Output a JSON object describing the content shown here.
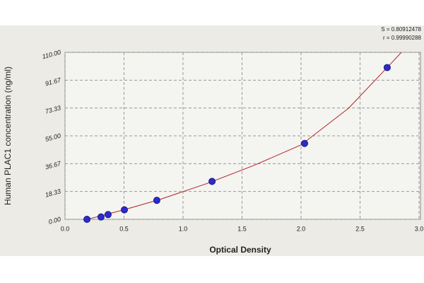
{
  "chart_data": {
    "type": "scatter",
    "x_label": "Optical Density",
    "y_label": "Human PLAC1 concentration (ng/ml)",
    "annotations": [
      "S = 0.80912478",
      "r = 0.99990288"
    ],
    "xlim": [
      0,
      3.0
    ],
    "xticks": [
      {
        "value": 0,
        "label": "0.0"
      },
      0.5,
      {
        "value": 1,
        "label": "1.0"
      },
      1.5,
      {
        "value": 2,
        "label": "2.0"
      },
      2.5,
      {
        "value": 3,
        "label": "3.0"
      }
    ],
    "ylim": [
      0,
      110
    ],
    "yticks": [
      {
        "value": 0,
        "label": "0.00"
      },
      18.33,
      36.67,
      {
        "value": 55,
        "label": "55.00"
      },
      73.33,
      91.67,
      {
        "value": 110,
        "label": "110.00"
      }
    ],
    "grid": true,
    "series": [
      {
        "color": "#2b2bd0",
        "x": [
          0.186,
          0.305,
          0.365,
          0.503,
          0.778,
          1.246,
          2.03,
          2.73
        ],
        "values": [
          0,
          1.56,
          3.13,
          6.25,
          12.5,
          25,
          50,
          100
        ]
      },
      {
        "color": "#b22222",
        "line": true,
        "x": [
          0.19,
          0.5,
          0.8,
          1.2,
          1.6,
          2.0,
          2.4,
          2.73,
          2.85
        ],
        "values": [
          0,
          6.3,
          13,
          23.5,
          35.5,
          49,
          73,
          100,
          110
        ]
      }
    ]
  }
}
